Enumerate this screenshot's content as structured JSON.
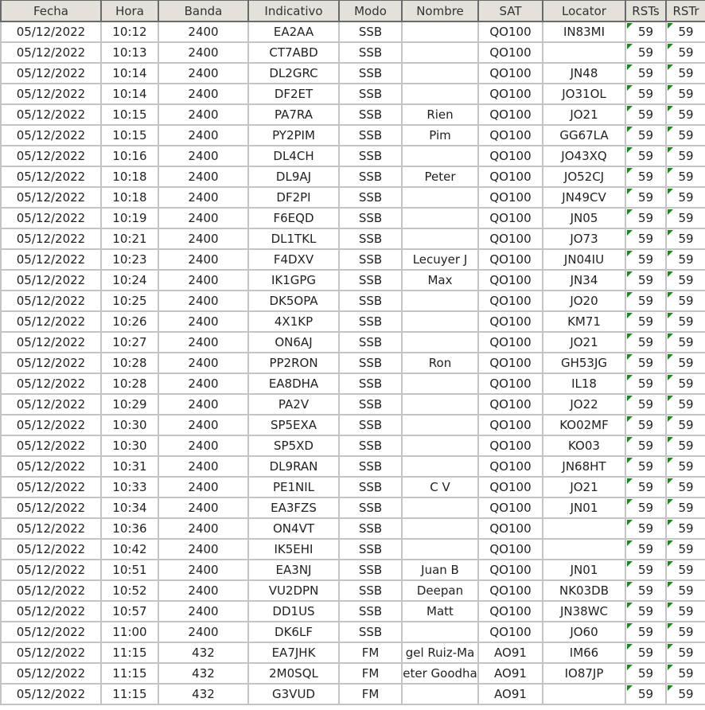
{
  "columns": [
    "Fecha",
    "Hora",
    "Banda",
    "Indicativo",
    "Modo",
    "Nombre",
    "SAT",
    "Locator",
    "RSTs",
    "RSTr"
  ],
  "colors": {
    "header_bg": "#e4e1da",
    "grid": "#c4c4c4",
    "marker": "#1a8a1a"
  },
  "rows": [
    [
      "05/12/2022",
      "10:12",
      "2400",
      "EA2AA",
      "SSB",
      "",
      "QO100",
      "IN83MI",
      "59",
      "59"
    ],
    [
      "05/12/2022",
      "10:13",
      "2400",
      "CT7ABD",
      "SSB",
      "",
      "QO100",
      "",
      "59",
      "59"
    ],
    [
      "05/12/2022",
      "10:14",
      "2400",
      "DL2GRC",
      "SSB",
      "",
      "QO100",
      "JN48",
      "59",
      "59"
    ],
    [
      "05/12/2022",
      "10:14",
      "2400",
      "DF2ET",
      "SSB",
      "",
      "QO100",
      "JO31OL",
      "59",
      "59"
    ],
    [
      "05/12/2022",
      "10:15",
      "2400",
      "PA7RA",
      "SSB",
      "Rien",
      "QO100",
      "JO21",
      "59",
      "59"
    ],
    [
      "05/12/2022",
      "10:15",
      "2400",
      "PY2PIM",
      "SSB",
      "Pim",
      "QO100",
      "GG67LA",
      "59",
      "59"
    ],
    [
      "05/12/2022",
      "10:16",
      "2400",
      "DL4CH",
      "SSB",
      "",
      "QO100",
      "JO43XQ",
      "59",
      "59"
    ],
    [
      "05/12/2022",
      "10:18",
      "2400",
      "DL9AJ",
      "SSB",
      "Peter",
      "QO100",
      "JO52CJ",
      "59",
      "59"
    ],
    [
      "05/12/2022",
      "10:18",
      "2400",
      "DF2PI",
      "SSB",
      "",
      "QO100",
      "JN49CV",
      "59",
      "59"
    ],
    [
      "05/12/2022",
      "10:19",
      "2400",
      "F6EQD",
      "SSB",
      "",
      "QO100",
      "JN05",
      "59",
      "59"
    ],
    [
      "05/12/2022",
      "10:21",
      "2400",
      "DL1TKL",
      "SSB",
      "",
      "QO100",
      "JO73",
      "59",
      "59"
    ],
    [
      "05/12/2022",
      "10:23",
      "2400",
      "F4DXV",
      "SSB",
      "Lecuyer J",
      "QO100",
      "JN04IU",
      "59",
      "59"
    ],
    [
      "05/12/2022",
      "10:24",
      "2400",
      "IK1GPG",
      "SSB",
      "Max",
      "QO100",
      "JN34",
      "59",
      "59"
    ],
    [
      "05/12/2022",
      "10:25",
      "2400",
      "DK5OPA",
      "SSB",
      "",
      "QO100",
      "JO20",
      "59",
      "59"
    ],
    [
      "05/12/2022",
      "10:26",
      "2400",
      "4X1KP",
      "SSB",
      "",
      "QO100",
      "KM71",
      "59",
      "59"
    ],
    [
      "05/12/2022",
      "10:27",
      "2400",
      "ON6AJ",
      "SSB",
      "",
      "QO100",
      "JO21",
      "59",
      "59"
    ],
    [
      "05/12/2022",
      "10:28",
      "2400",
      "PP2RON",
      "SSB",
      "Ron",
      "QO100",
      "GH53JG",
      "59",
      "59"
    ],
    [
      "05/12/2022",
      "10:28",
      "2400",
      "EA8DHA",
      "SSB",
      "",
      "QO100",
      "IL18",
      "59",
      "59"
    ],
    [
      "05/12/2022",
      "10:29",
      "2400",
      "PA2V",
      "SSB",
      "",
      "QO100",
      "JO22",
      "59",
      "59"
    ],
    [
      "05/12/2022",
      "10:30",
      "2400",
      "SP5EXA",
      "SSB",
      "",
      "QO100",
      "KO02MF",
      "59",
      "59"
    ],
    [
      "05/12/2022",
      "10:30",
      "2400",
      "SP5XD",
      "SSB",
      "",
      "QO100",
      "KO03",
      "59",
      "59"
    ],
    [
      "05/12/2022",
      "10:31",
      "2400",
      "DL9RAN",
      "SSB",
      "",
      "QO100",
      "JN68HT",
      "59",
      "59"
    ],
    [
      "05/12/2022",
      "10:33",
      "2400",
      "PE1NIL",
      "SSB",
      "C V",
      "QO100",
      "JO21",
      "59",
      "59"
    ],
    [
      "05/12/2022",
      "10:34",
      "2400",
      "EA3FZS",
      "SSB",
      "",
      "QO100",
      "JN01",
      "59",
      "59"
    ],
    [
      "05/12/2022",
      "10:36",
      "2400",
      "ON4VT",
      "SSB",
      "",
      "QO100",
      "",
      "59",
      "59"
    ],
    [
      "05/12/2022",
      "10:42",
      "2400",
      "IK5EHI",
      "SSB",
      "",
      "QO100",
      "",
      "59",
      "59"
    ],
    [
      "05/12/2022",
      "10:51",
      "2400",
      "EA3NJ",
      "SSB",
      "Juan B",
      "QO100",
      "JN01",
      "59",
      "59"
    ],
    [
      "05/12/2022",
      "10:52",
      "2400",
      "VU2DPN",
      "SSB",
      "Deepan",
      "QO100",
      "NK03DB",
      "59",
      "59"
    ],
    [
      "05/12/2022",
      "10:57",
      "2400",
      "DD1US",
      "SSB",
      "Matt",
      "QO100",
      "JN38WC",
      "59",
      "59"
    ],
    [
      "05/12/2022",
      "11:00",
      "2400",
      "DK6LF",
      "SSB",
      "",
      "QO100",
      "JO60",
      "59",
      "59"
    ],
    [
      "05/12/2022",
      "11:15",
      "432",
      "EA7JHK",
      "FM",
      "gel Ruiz-Ma",
      "AO91",
      "IM66",
      "59",
      "59"
    ],
    [
      "05/12/2022",
      "11:15",
      "432",
      "2M0SQL",
      "FM",
      "eter Goodha",
      "AO91",
      "IO87JP",
      "59",
      "59"
    ],
    [
      "05/12/2022",
      "11:15",
      "432",
      "G3VUD",
      "FM",
      "",
      "AO91",
      "",
      "59",
      "59"
    ]
  ]
}
